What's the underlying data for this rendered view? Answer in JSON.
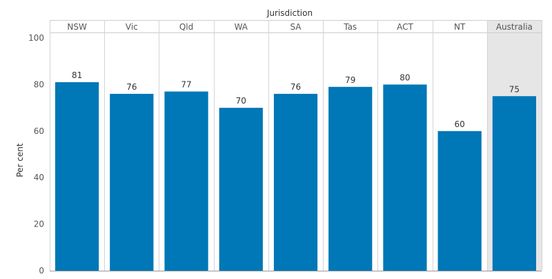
{
  "chart_data": {
    "type": "bar",
    "xlabel": "Jurisdiction",
    "ylabel": "Per cent",
    "ylim": [
      0,
      100
    ],
    "yticks": [
      0,
      20,
      40,
      60,
      80,
      100
    ],
    "categories": [
      "NSW",
      "Vic",
      "Qld",
      "WA",
      "SA",
      "Tas",
      "ACT",
      "NT",
      "Australia"
    ],
    "values": [
      81,
      76,
      77,
      70,
      76,
      79,
      80,
      60,
      75
    ],
    "highlight_category": "Australia",
    "grid": false,
    "bar_color": "#0077b6",
    "highlight_bg": "#e6e6e6"
  }
}
